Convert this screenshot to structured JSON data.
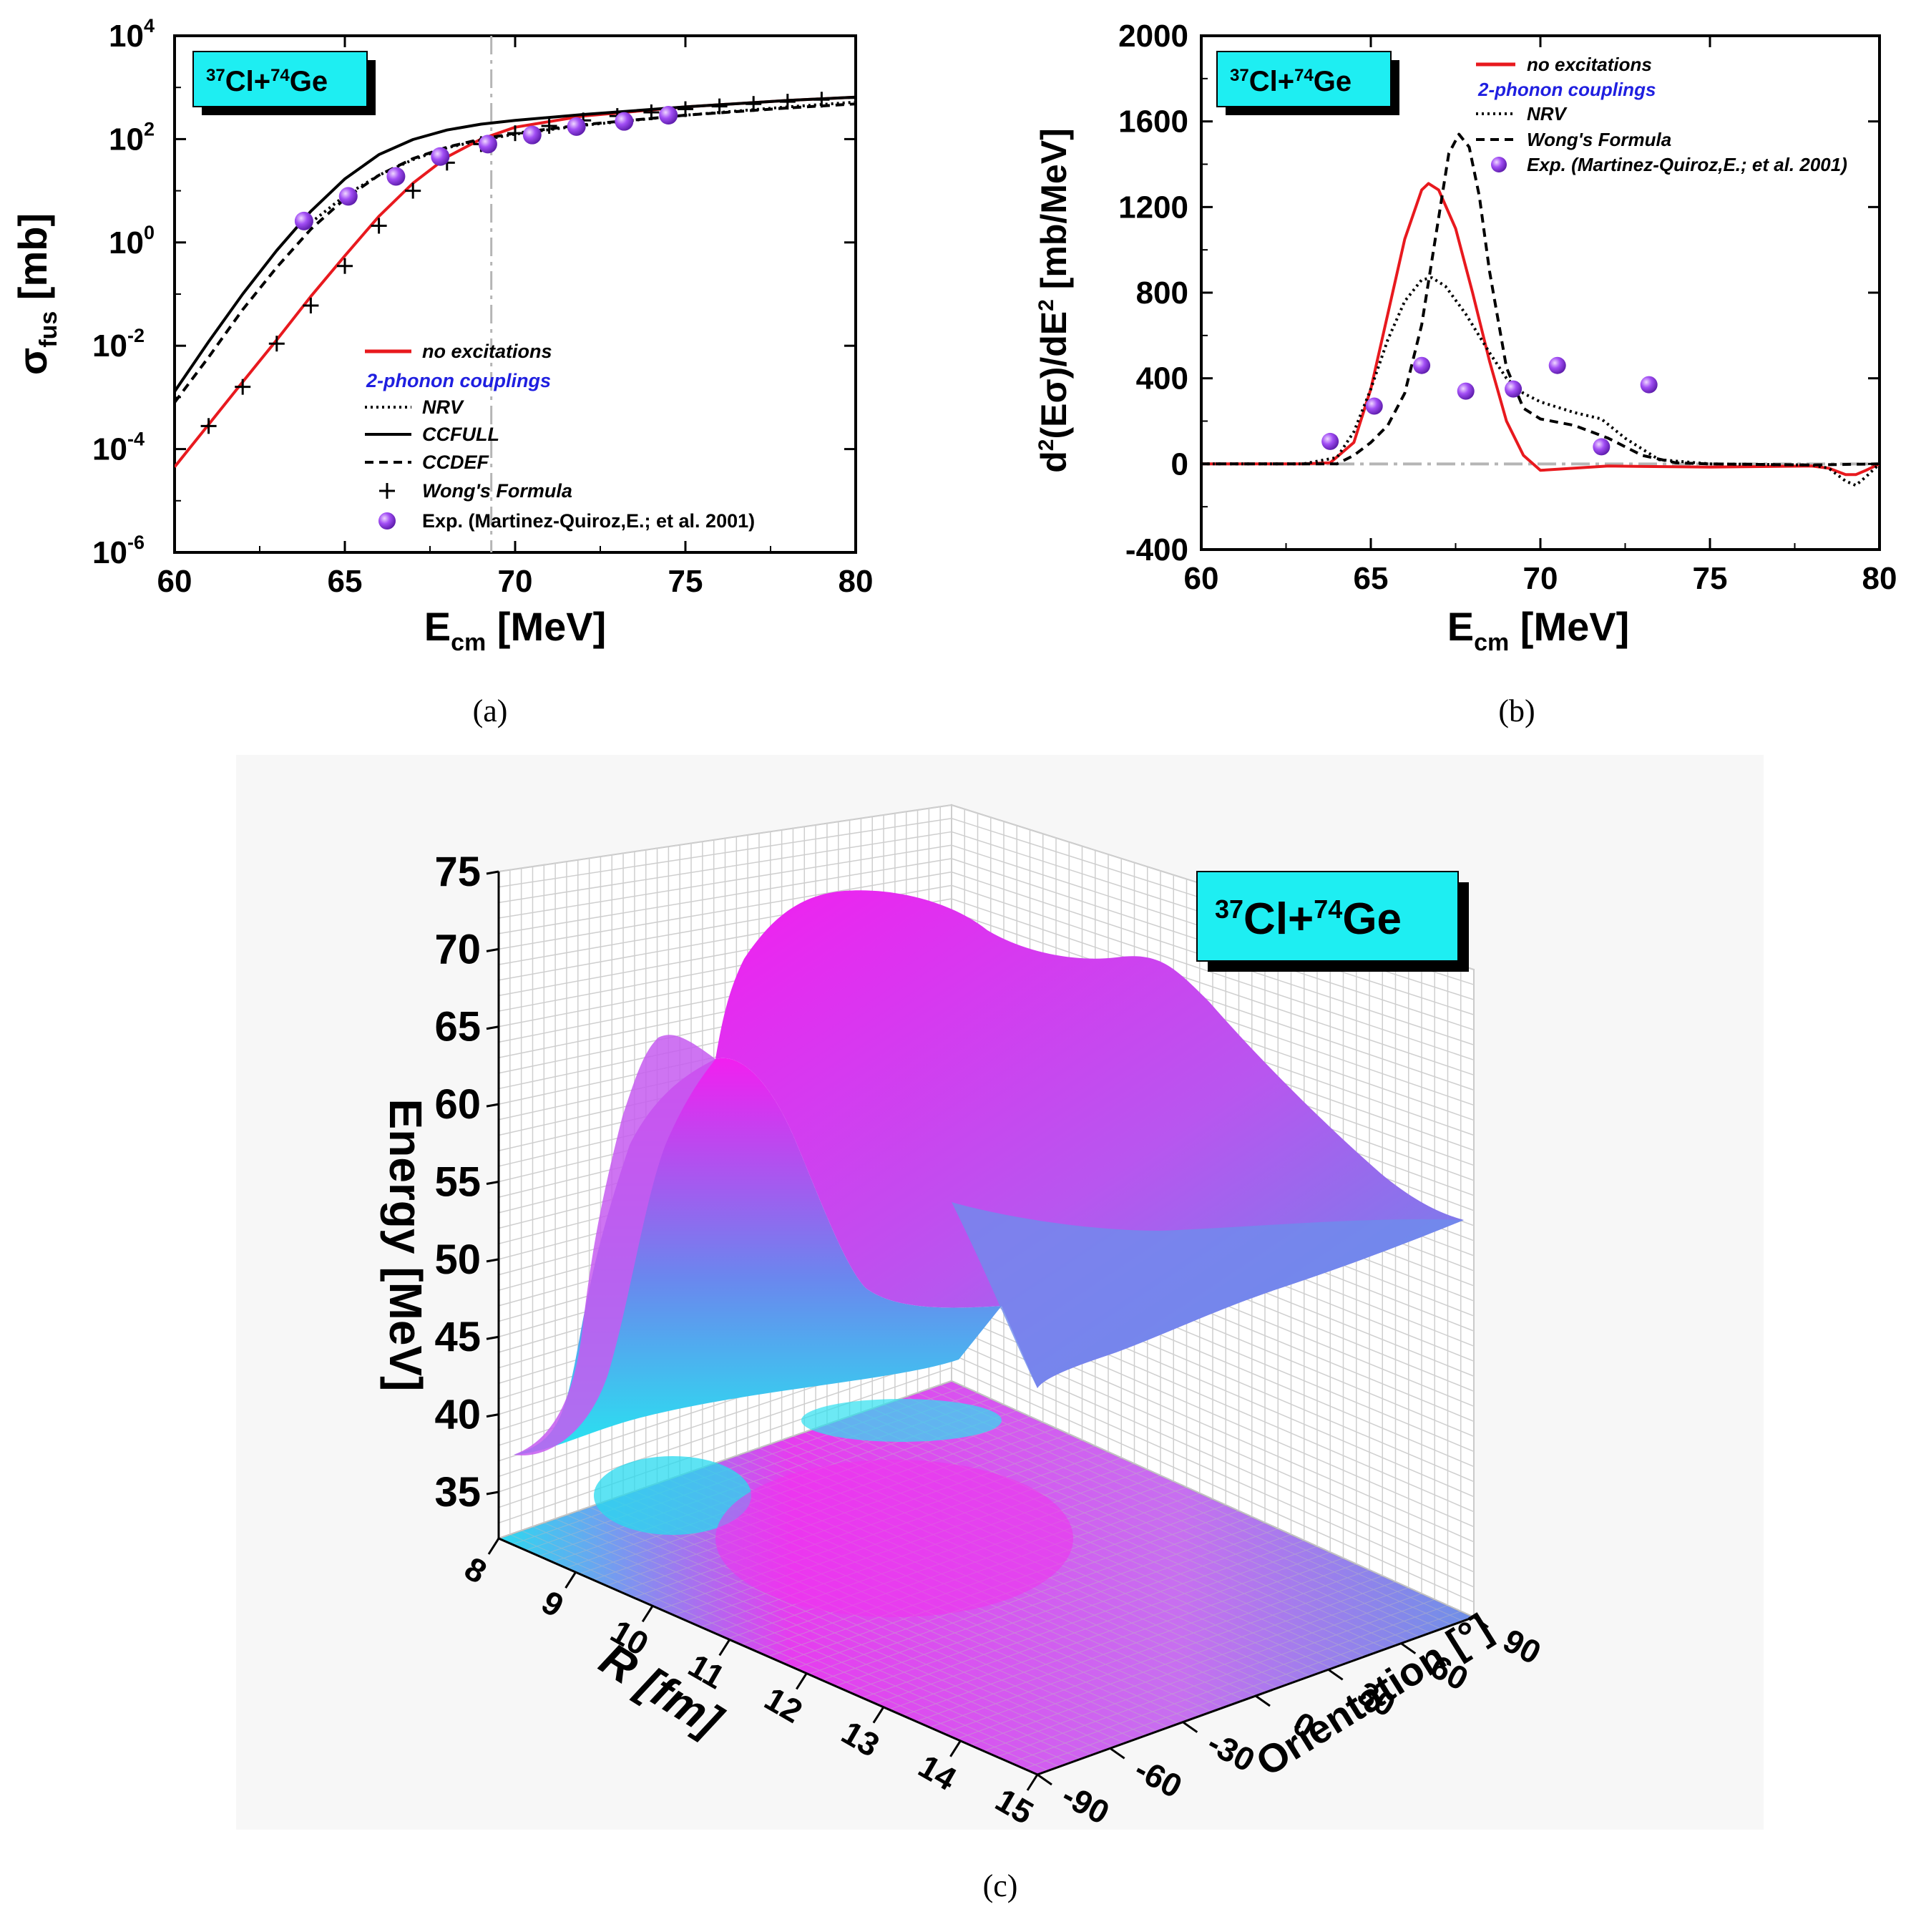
{
  "colors": {
    "no_excitations": "#e8191e",
    "two_phonon": "#1f1fe0",
    "label_box": "#1eeef2",
    "exp_marker": "#9b3bf5",
    "surface_pink": "#f21ff0",
    "surface_cyan": "#26e6f0",
    "surface_blue": "#5b8ae8"
  },
  "captions": {
    "a": "(a)",
    "b": "(b)",
    "c": "(c)"
  },
  "reaction": {
    "a_mass": "37",
    "a_el": "Cl+",
    "b_mass": "74",
    "b_el": "Ge"
  },
  "chart_data": [
    {
      "id": "a",
      "type": "line",
      "ylog": true,
      "xlim": [
        60,
        80
      ],
      "ylim_exp": [
        -6,
        4
      ],
      "xticks": [
        60,
        65,
        70,
        75,
        80
      ],
      "yticks_exp": [
        -6,
        -4,
        -2,
        0,
        2,
        4
      ],
      "xlabel": {
        "main": "E",
        "sub": "cm",
        "unit": " [MeV]"
      },
      "ylabel": {
        "main": "σ",
        "sub": "fus",
        "unit": " [mb]"
      },
      "vline_x": 69.3,
      "legend": [
        {
          "key": "no_excitations",
          "label": "no excitations"
        },
        {
          "key": "two_phonon",
          "label": "2-phonon couplings"
        },
        {
          "key": "nrv",
          "label": "NRV"
        },
        {
          "key": "ccfull",
          "label": "CCFULL"
        },
        {
          "key": "ccdef",
          "label": "CCDEF"
        },
        {
          "key": "wong",
          "label": "Wong's Formula"
        },
        {
          "key": "exp",
          "label": "Exp. (Martinez-Quiroz,E.; et al. 2001)"
        }
      ],
      "series": [
        {
          "key": "no_excitations",
          "x": [
            60,
            61,
            62,
            63,
            64,
            65,
            66,
            67,
            68,
            69,
            70,
            72,
            75,
            78,
            80
          ],
          "y": [
            4.5e-05,
            0.0003,
            0.002,
            0.013,
            0.09,
            0.55,
            3.2,
            14,
            45,
            100,
            170,
            280,
            420,
            560,
            650
          ]
        },
        {
          "key": "ccfull",
          "x": [
            60,
            61,
            62,
            63,
            64,
            65,
            66,
            67,
            68,
            69,
            70,
            72,
            75,
            78,
            80
          ],
          "y": [
            0.0013,
            0.012,
            0.1,
            0.7,
            4,
            17,
            50,
            98,
            150,
            195,
            230,
            300,
            420,
            560,
            650
          ]
        },
        {
          "key": "ccdef",
          "x": [
            60,
            61,
            62,
            63,
            64,
            65,
            66,
            67,
            68,
            69,
            70,
            72,
            75,
            78,
            80
          ],
          "y": [
            0.0008,
            0.006,
            0.05,
            0.33,
            1.8,
            7,
            20,
            42,
            70,
            100,
            130,
            190,
            290,
            400,
            480
          ]
        },
        {
          "key": "nrv",
          "x": [
            64,
            65,
            66,
            67,
            68,
            69,
            70,
            72,
            75,
            78,
            80
          ],
          "y": [
            2.4,
            8,
            20,
            40,
            68,
            95,
            125,
            185,
            290,
            420,
            520
          ]
        },
        {
          "key": "wong",
          "x": [
            61,
            62,
            63,
            64,
            65,
            66,
            67,
            68,
            69,
            70,
            71,
            72,
            73,
            74,
            75,
            76,
            77,
            78,
            79,
            80
          ],
          "y": [
            0.00028,
            0.0016,
            0.011,
            0.06,
            0.35,
            2.1,
            10,
            35,
            80,
            130,
            180,
            230,
            280,
            330,
            380,
            430,
            480,
            530,
            580,
            630
          ]
        },
        {
          "key": "exp",
          "x": [
            63.8,
            65.1,
            66.5,
            67.8,
            69.2,
            70.5,
            71.8,
            73.2,
            74.5
          ],
          "y": [
            2.6,
            7.8,
            19,
            46,
            80,
            120,
            175,
            220,
            290
          ]
        }
      ]
    },
    {
      "id": "b",
      "type": "line",
      "xlim": [
        60,
        80
      ],
      "ylim": [
        -400,
        2000
      ],
      "xticks": [
        60,
        65,
        70,
        75,
        80
      ],
      "yticks": [
        -400,
        0,
        400,
        800,
        1200,
        1600,
        2000
      ],
      "xlabel": {
        "main": "E",
        "sub": "cm",
        "unit": " [MeV]"
      },
      "ylabel": {
        "pre": "d",
        "sup1": "2",
        "mid": "(Eσ)/dE",
        "sup2": "2",
        "unit": " [mb/MeV]"
      },
      "hline_y": 0,
      "legend": [
        {
          "key": "no_excitations",
          "label": "no excitations"
        },
        {
          "key": "two_phonon",
          "label": "2-phonon couplings"
        },
        {
          "key": "nrv",
          "label": "NRV"
        },
        {
          "key": "wong",
          "label": "Wong's Formula"
        },
        {
          "key": "exp",
          "label": "Exp. (Martinez-Quiroz,E.; et al. 2001)"
        }
      ],
      "series": [
        {
          "key": "no_excitations",
          "x": [
            60,
            63,
            63.8,
            64.5,
            65,
            65.5,
            66,
            66.5,
            66.7,
            67,
            67.5,
            68,
            68.5,
            69,
            69.5,
            70,
            71,
            72,
            75,
            78,
            78.5,
            79,
            79.3,
            79.6,
            80
          ],
          "y": [
            0,
            0,
            5,
            100,
            350,
            700,
            1050,
            1280,
            1310,
            1280,
            1100,
            800,
            480,
            200,
            40,
            -30,
            -20,
            -10,
            -15,
            -10,
            -20,
            -50,
            -50,
            -30,
            0
          ]
        },
        {
          "key": "nrv",
          "x": [
            60,
            63,
            64,
            64.5,
            65,
            65.5,
            66,
            66.5,
            66.8,
            67.2,
            67.8,
            68.5,
            69,
            69.5,
            70,
            71,
            71.8,
            72.5,
            73.5,
            75,
            78,
            78.5,
            79,
            79.3,
            79.6,
            80
          ],
          "y": [
            0,
            0,
            30,
            150,
            350,
            580,
            760,
            860,
            870,
            830,
            700,
            520,
            400,
            330,
            290,
            240,
            210,
            120,
            20,
            0,
            -5,
            -20,
            -80,
            -100,
            -60,
            0
          ]
        },
        {
          "key": "wong",
          "x": [
            60,
            64,
            64.5,
            65,
            65.5,
            66,
            66.5,
            67,
            67.3,
            67.6,
            67.9,
            68.2,
            68.5,
            69,
            69.5,
            70,
            71,
            72,
            73,
            74,
            75,
            78,
            80
          ],
          "y": [
            0,
            0,
            40,
            100,
            180,
            330,
            650,
            1150,
            1450,
            1540,
            1480,
            1250,
            900,
            450,
            260,
            210,
            180,
            120,
            40,
            5,
            0,
            -5,
            0
          ]
        },
        {
          "key": "exp",
          "x": [
            63.8,
            65.1,
            66.5,
            67.8,
            69.2,
            70.5,
            71.8,
            73.2
          ],
          "y": [
            105,
            270,
            460,
            340,
            350,
            460,
            80,
            370
          ]
        }
      ]
    },
    {
      "id": "c",
      "type": "surface3d",
      "zlabel": "Energy [MeV]",
      "xlabel": "R [fm]",
      "ylabel": "Orientation [°]",
      "zlim": [
        32,
        75
      ],
      "zticks": [
        35,
        40,
        45,
        50,
        55,
        60,
        65,
        70,
        75
      ],
      "xticks": [
        8,
        9,
        10,
        11,
        12,
        13,
        14,
        15
      ],
      "yticks": [
        -90,
        -60,
        -30,
        0,
        30,
        60,
        90
      ],
      "labels": {
        "zticks": [
          "35",
          "40",
          "45",
          "50",
          "55",
          "60",
          "65",
          "70",
          "75"
        ],
        "xticks": [
          "8",
          "9",
          "10",
          "11",
          "12",
          "13",
          "14",
          "15"
        ],
        "yticks": [
          "-90",
          "-60",
          "-30",
          "0",
          "30",
          "60",
          "90"
        ]
      },
      "colormap": [
        "#26e6f0",
        "#6b86ee",
        "#f21ff0"
      ]
    }
  ]
}
